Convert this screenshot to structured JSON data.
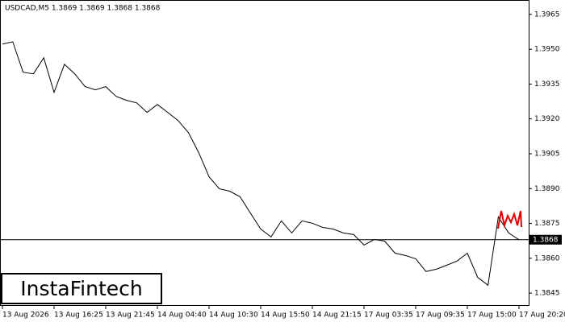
{
  "chart_data": {
    "type": "line",
    "title": "USDCAD,M5  1.3869 1.3869 1.3868 1.3868",
    "watermark": "InstaFintech",
    "categories": [
      "13 Aug 2026",
      null,
      null,
      null,
      null,
      "13 Aug 16:25",
      null,
      null,
      null,
      null,
      "13 Aug 21:45",
      null,
      null,
      null,
      null,
      "14 Aug 04:40",
      null,
      null,
      null,
      null,
      "14 Aug 10:30",
      null,
      null,
      null,
      null,
      "14 Aug 15:50",
      null,
      null,
      null,
      null,
      "14 Aug 21:15",
      null,
      null,
      null,
      null,
      "17 Aug 03:35",
      null,
      null,
      null,
      null,
      "17 Aug 09:35",
      null,
      null,
      null,
      null,
      "17 Aug 15:00",
      null,
      null,
      null,
      null,
      "17 Aug 20:20"
    ],
    "values": [
      1.39522,
      1.39532,
      1.39401,
      1.39394,
      1.39463,
      1.39314,
      1.39435,
      1.39394,
      1.39339,
      1.39325,
      1.39339,
      1.39297,
      1.3928,
      1.39269,
      1.39228,
      1.39262,
      1.39228,
      1.39193,
      1.39141,
      1.39055,
      1.38951,
      1.38899,
      1.38889,
      1.38865,
      1.38795,
      1.38726,
      1.38692,
      1.38761,
      1.38709,
      1.38761,
      1.38751,
      1.38733,
      1.38726,
      1.38709,
      1.38702,
      1.38657,
      1.38681,
      1.38674,
      1.38622,
      1.38612,
      1.38598,
      1.38543,
      1.38553,
      1.3857,
      1.38588,
      1.38622,
      1.38518,
      1.38484,
      1.38778,
      1.38709,
      1.3868
    ],
    "color": "#000000",
    "current_price": 1.3868,
    "ylim": [
      1.38395,
      1.39705
    ],
    "yticks": [
      1.3965,
      {
        "value": 1.395,
        "label": "1.3950"
      },
      1.3935,
      {
        "value": 1.392,
        "label": "1.3920"
      },
      1.3905,
      {
        "value": 1.389,
        "label": "1.3890"
      },
      1.3875,
      {
        "value": 1.386,
        "label": "1.3860"
      },
      1.3845
    ]
  }
}
